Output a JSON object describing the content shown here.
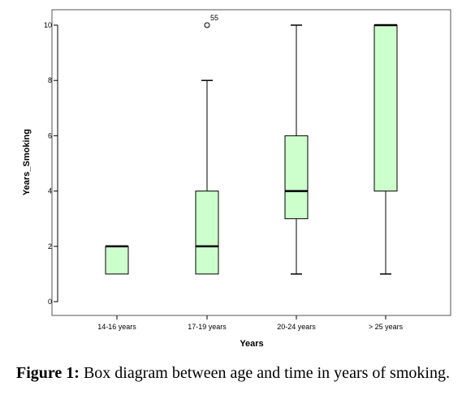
{
  "caption": {
    "label": "Figure 1:",
    "text": "Box diagram between age and time in years of smoking."
  },
  "colors": {
    "box_fill": "#ccffcc",
    "line": "#000000",
    "frame": "#555555"
  },
  "chart_data": {
    "type": "boxplot",
    "title": "",
    "xlabel": "Years",
    "ylabel": "Years_Smoking",
    "ylim": [
      0,
      10
    ],
    "yticks": [
      0,
      2,
      4,
      6,
      8,
      10
    ],
    "categories": [
      "14-16 years",
      "17-19 years",
      "20-24 years",
      "> 25 years"
    ],
    "boxes": [
      {
        "category": "14-16 years",
        "min": 1,
        "q1": 1,
        "median": 2,
        "q3": 2,
        "max": 2,
        "outliers": []
      },
      {
        "category": "17-19 years",
        "min": 1,
        "q1": 1,
        "median": 2,
        "q3": 4,
        "max": 8,
        "outliers": [
          {
            "value": 10,
            "label": "55"
          }
        ]
      },
      {
        "category": "20-24 years",
        "min": 1,
        "q1": 3,
        "median": 4,
        "q3": 6,
        "max": 10,
        "outliers": []
      },
      {
        "category": "> 25 years",
        "min": 1,
        "q1": 4,
        "median": 10,
        "q3": 10,
        "max": 10,
        "outliers": []
      }
    ],
    "grid": false,
    "legend": "none"
  }
}
